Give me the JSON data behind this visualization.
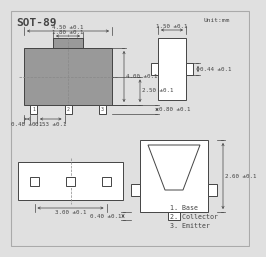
{
  "title": "SOT-89",
  "unit_label": "Unit:mm",
  "bg_color": "#e0e0e0",
  "line_color": "#444444",
  "body_fill": "#999999",
  "white": "#ffffff",
  "legend": [
    "1. Base",
    "2. Collector",
    "3. Emitter"
  ],
  "dims": {
    "top_width": "4.50 ±0.1",
    "tab_width": "1.80 ±0.1",
    "right_width": "1.50 ±0.1",
    "height_outer": "4.00 ±0.1",
    "height_inner": "2.50 ±0.1",
    "pin_left": "0.48 ±0.1",
    "pin_spacing": "0.53 ±0.1",
    "pin_bottom": "0.80 ±0.1",
    "bottom_width": "3.00 ±0.1",
    "side_pin_w": "0.44 ±0.1",
    "cs_height1": "2.60 ±0.1",
    "cs_height2": "0.40 ±0.1"
  }
}
